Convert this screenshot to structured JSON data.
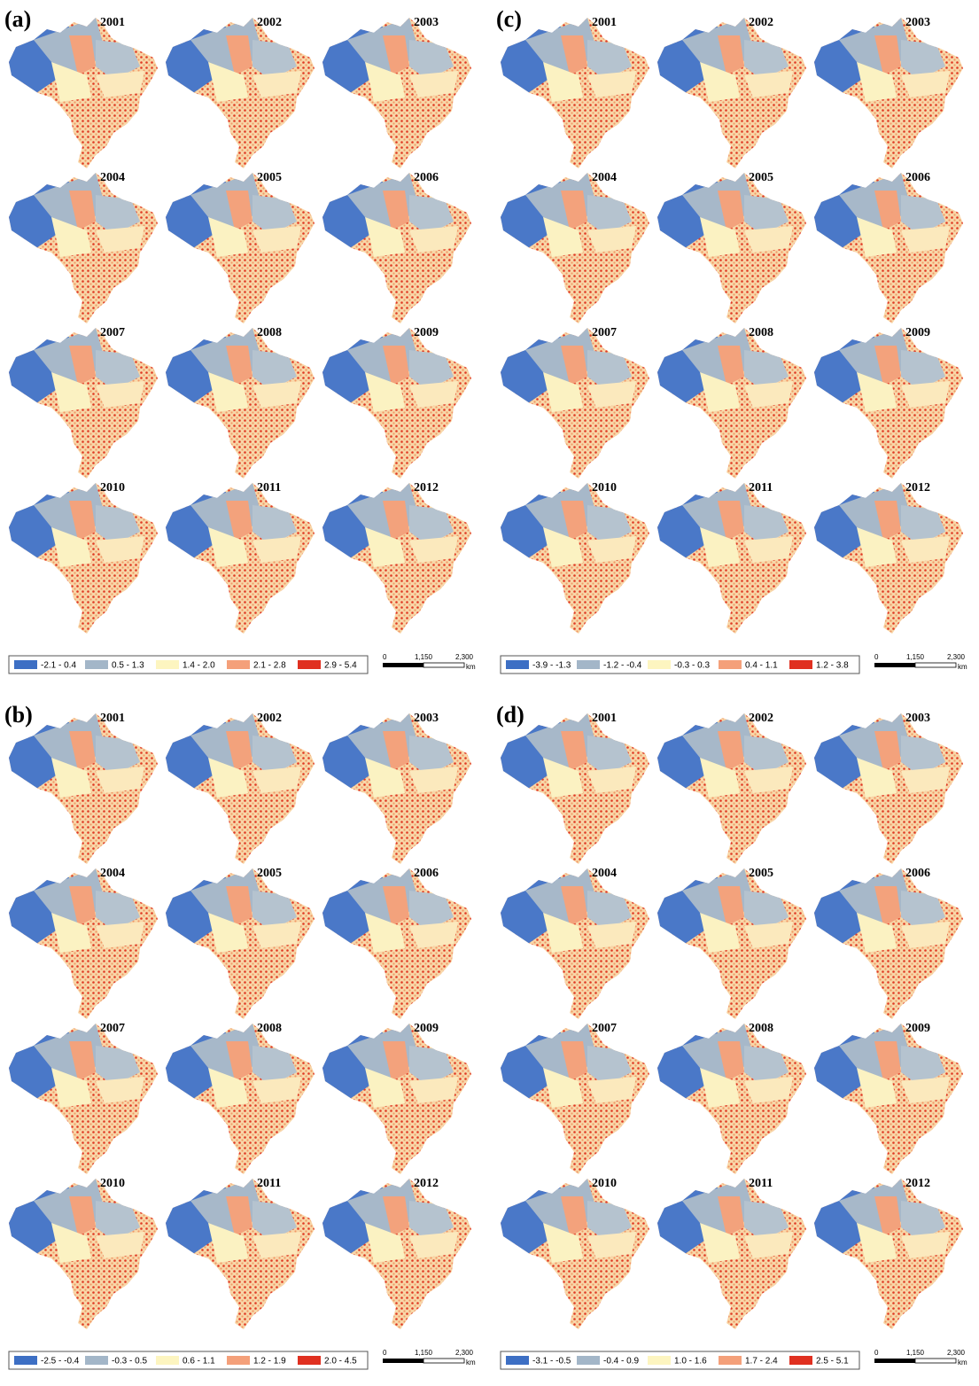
{
  "panels": [
    {
      "label": "(a)",
      "years": [
        "2001",
        "2002",
        "2003",
        "2004",
        "2005",
        "2006",
        "2007",
        "2008",
        "2009",
        "2010",
        "2011",
        "2012"
      ],
      "legend": [
        "-2.1 - 0.4",
        "0.5 - 1.3",
        "1.4 - 2.0",
        "2.1 - 2.8",
        "2.9 - 5.4"
      ],
      "scale_bar": {
        "labels": [
          "0",
          "1,150",
          "2,300"
        ],
        "unit": "km"
      }
    },
    {
      "label": "(b)",
      "years": [
        "2001",
        "2002",
        "2003",
        "2004",
        "2005",
        "2006",
        "2007",
        "2008",
        "2009",
        "2010",
        "2011",
        "2012"
      ],
      "legend": [
        "-2.5 - -0.4",
        "-0.3 - 0.5",
        "0.6 - 1.1",
        "1.2 - 1.9",
        "2.0 - 4.5"
      ],
      "scale_bar": {
        "labels": [
          "0",
          "1,150",
          "2,300"
        ],
        "unit": "km"
      }
    },
    {
      "label": "(c)",
      "years": [
        "2001",
        "2002",
        "2003",
        "2004",
        "2005",
        "2006",
        "2007",
        "2008",
        "2009",
        "2010",
        "2011",
        "2012"
      ],
      "legend": [
        "-3.9 - -1.3",
        "-1.2 - -0.4",
        "-0.3 - 0.3",
        "0.4 - 1.1",
        "1.2 - 3.8"
      ],
      "scale_bar": {
        "labels": [
          "0",
          "1,150",
          "2,300"
        ],
        "unit": "km"
      }
    },
    {
      "label": "(d)",
      "years": [
        "2001",
        "2002",
        "2003",
        "2004",
        "2005",
        "2006",
        "2007",
        "2008",
        "2009",
        "2010",
        "2011",
        "2012"
      ],
      "legend": [
        "-3.1 - -0.5",
        "-0.4 - 0.9",
        "1.0 - 1.6",
        "1.7 - 2.4",
        "2.5 - 5.1"
      ],
      "scale_bar": {
        "labels": [
          "0",
          "1,150",
          "2,300"
        ],
        "unit": "km"
      }
    }
  ]
}
